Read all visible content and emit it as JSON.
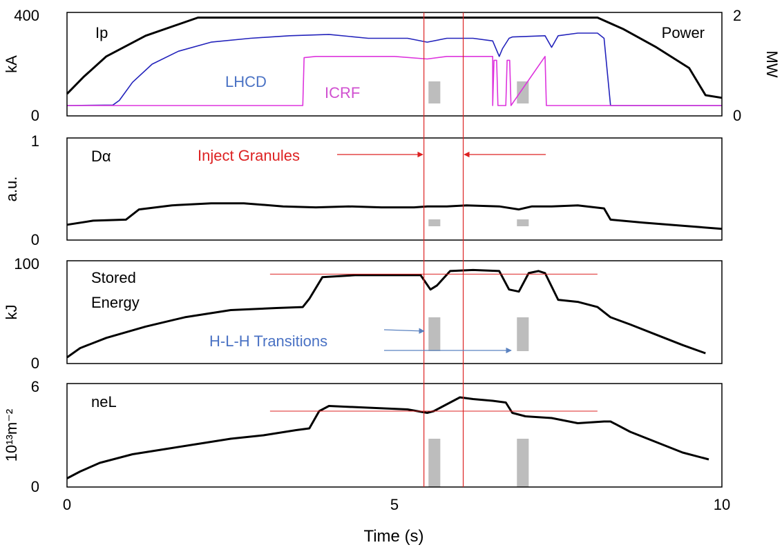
{
  "colors": {
    "ip": "#000000",
    "lhcd": "#2222bb",
    "lhcd_label": "#4a72c4",
    "icrf": "#dd33dd",
    "icrf_label": "#d050d0",
    "marker": "#dd2222",
    "gray_bar": "#bdbdbd",
    "blue_arrow": "#5a82c0"
  },
  "chart_data": {
    "type": "line",
    "xlabel": "Time (s)",
    "xlim": [
      0,
      10
    ],
    "x_ticks": [
      "0",
      "5",
      "10"
    ],
    "vertical_markers_s": [
      5.45,
      6.05
    ],
    "gray_bars_s": [
      [
        5.52,
        5.7
      ],
      [
        6.87,
        7.05
      ]
    ],
    "panels": [
      {
        "ylabel": "kA",
        "ylim": [
          0,
          400
        ],
        "y_ticks": [
          "0",
          "400"
        ],
        "right_ylabel": "MW",
        "right_ylim": [
          0,
          2
        ],
        "right_ticks": [
          "0",
          "2"
        ],
        "annotations": [
          "Ip",
          "Power"
        ],
        "series": [
          {
            "name": "Ip",
            "x": [
              0,
              0.25,
              0.6,
              1.2,
              2.0,
              8.1,
              8.5,
              9.0,
              9.5,
              9.75,
              10
            ],
            "values": [
              85,
              150,
              230,
              310,
              380,
              380,
              335,
              265,
              185,
              80,
              70
            ]
          },
          {
            "name": "LHCD",
            "x": [
              0,
              0.7,
              0.8,
              1.0,
              1.3,
              1.7,
              2.2,
              2.8,
              3.4,
              4.0,
              4.6,
              5.2,
              5.5,
              5.8,
              6.2,
              6.5,
              6.6,
              6.65,
              6.75,
              6.8,
              7.3,
              7.4,
              7.5,
              7.8,
              8.1,
              8.2,
              8.3,
              10
            ],
            "values": [
              40,
              42,
              60,
              130,
              200,
              250,
              285,
              300,
              310,
              315,
              300,
              300,
              285,
              300,
              300,
              290,
              230,
              260,
              300,
              305,
              310,
              265,
              310,
              320,
              320,
              300,
              40,
              40
            ]
          },
          {
            "name": "ICRF",
            "x": [
              0,
              3.6,
              3.62,
              3.8,
              5.0,
              5.5,
              5.8,
              6.5,
              6.5,
              6.52,
              6.56,
              6.58,
              6.7,
              6.72,
              6.76,
              6.78,
              7.3,
              7.32,
              10
            ],
            "values": [
              40,
              40,
              225,
              230,
              230,
              220,
              230,
              230,
              40,
              215,
              215,
              40,
              40,
              215,
              215,
              40,
              230,
              40,
              40
            ]
          }
        ]
      },
      {
        "ylabel": "a.u.",
        "ylim": [
          0,
          1
        ],
        "y_ticks": [
          "0",
          "1"
        ],
        "annotations": [
          "Dα",
          "Inject Granules"
        ],
        "series": [
          {
            "name": "Dα",
            "x": [
              0,
              0.4,
              0.9,
              1.1,
              1.6,
              2.2,
              2.7,
              3.3,
              3.8,
              4.3,
              4.8,
              5.3,
              5.5,
              5.8,
              6.1,
              6.6,
              6.9,
              7.1,
              7.4,
              7.8,
              8.2,
              8.3,
              8.8,
              9.4,
              10
            ],
            "values": [
              0.15,
              0.19,
              0.2,
              0.3,
              0.34,
              0.36,
              0.36,
              0.33,
              0.32,
              0.33,
              0.32,
              0.32,
              0.33,
              0.33,
              0.34,
              0.33,
              0.3,
              0.33,
              0.33,
              0.34,
              0.31,
              0.2,
              0.17,
              0.14,
              0.11
            ]
          }
        ]
      },
      {
        "ylabel": "kJ",
        "ylim": [
          0,
          100
        ],
        "y_ticks": [
          "0",
          "100"
        ],
        "annotations": [
          "Stored",
          "Energy",
          "H-L-H Transitions"
        ],
        "reference_level": 87,
        "series": [
          {
            "name": "Stored Energy",
            "x": [
              0,
              0.2,
              0.6,
              1.2,
              1.8,
              2.5,
              3.2,
              3.6,
              3.7,
              3.9,
              4.4,
              5.0,
              5.4,
              5.55,
              5.65,
              5.85,
              6.2,
              6.6,
              6.75,
              6.9,
              7.05,
              7.2,
              7.3,
              7.5,
              7.8,
              8.1,
              8.3,
              8.6,
              9.0,
              9.4,
              9.75
            ],
            "values": [
              6,
              15,
              25,
              36,
              45,
              52,
              54,
              55,
              63,
              84,
              86,
              86,
              86,
              72,
              76,
              90,
              91,
              90,
              72,
              70,
              88,
              90,
              88,
              62,
              60,
              55,
              45,
              38,
              28,
              18,
              10
            ]
          }
        ]
      },
      {
        "ylabel": "10¹³m⁻²",
        "ylim": [
          0,
          6
        ],
        "y_ticks": [
          "0",
          "6"
        ],
        "annotations": [
          "neL"
        ],
        "reference_level": 4.4,
        "series": [
          {
            "name": "neL",
            "x": [
              0,
              0.2,
              0.5,
              1.0,
              1.5,
              2.0,
              2.5,
              3.0,
              3.5,
              3.7,
              3.85,
              4.0,
              4.6,
              5.2,
              5.5,
              5.6,
              5.75,
              6.0,
              6.2,
              6.5,
              6.7,
              6.8,
              7.0,
              7.4,
              7.8,
              8.2,
              8.3,
              8.6,
              9.0,
              9.4,
              9.8
            ],
            "values": [
              0.5,
              0.9,
              1.4,
              1.9,
              2.2,
              2.5,
              2.8,
              3.0,
              3.3,
              3.4,
              4.4,
              4.7,
              4.6,
              4.5,
              4.3,
              4.4,
              4.7,
              5.2,
              5.1,
              5.0,
              4.9,
              4.3,
              4.1,
              4.0,
              3.7,
              3.8,
              3.8,
              3.2,
              2.6,
              2.0,
              1.6
            ]
          }
        ]
      }
    ]
  }
}
